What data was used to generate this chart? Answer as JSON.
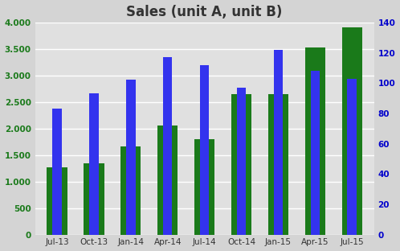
{
  "title": "Sales (unit A, unit B)",
  "categories": [
    "Jul-13",
    "Oct-13",
    "Jan-14",
    "Apr-14",
    "Jul-14",
    "Oct-14",
    "Jan-15",
    "Apr-15",
    "Jul-15"
  ],
  "green_values": [
    1270,
    1340,
    1660,
    2050,
    1800,
    2650,
    2650,
    3530,
    3900
  ],
  "blue_values": [
    83,
    93,
    102,
    117,
    112,
    97,
    122,
    108,
    103
  ],
  "green_color": "#1a7a1a",
  "blue_color": "#3333ee",
  "left_ylim": [
    0,
    4000
  ],
  "right_ylim": [
    0,
    140
  ],
  "left_yticks": [
    0,
    500,
    1000,
    1500,
    2000,
    2500,
    3000,
    3500,
    4000
  ],
  "right_yticks": [
    0,
    20,
    40,
    60,
    80,
    100,
    120,
    140
  ],
  "left_ytick_labels": [
    "0",
    "500",
    "1.000",
    "1.500",
    "2.000",
    "2.500",
    "3.000",
    "3.500",
    "4.000"
  ],
  "right_ytick_labels": [
    "0",
    "20",
    "40",
    "60",
    "80",
    "100",
    "120",
    "140"
  ],
  "left_tick_color": "#1a7a1a",
  "right_tick_color": "#0000cc",
  "bg_color": "#d4d4d4",
  "plot_bg_color": "#e0e0e0",
  "grid_color": "#ffffff",
  "title_color": "#333333",
  "title_fontsize": 12,
  "bar_width": 0.55,
  "blue_bar_width": 0.25
}
